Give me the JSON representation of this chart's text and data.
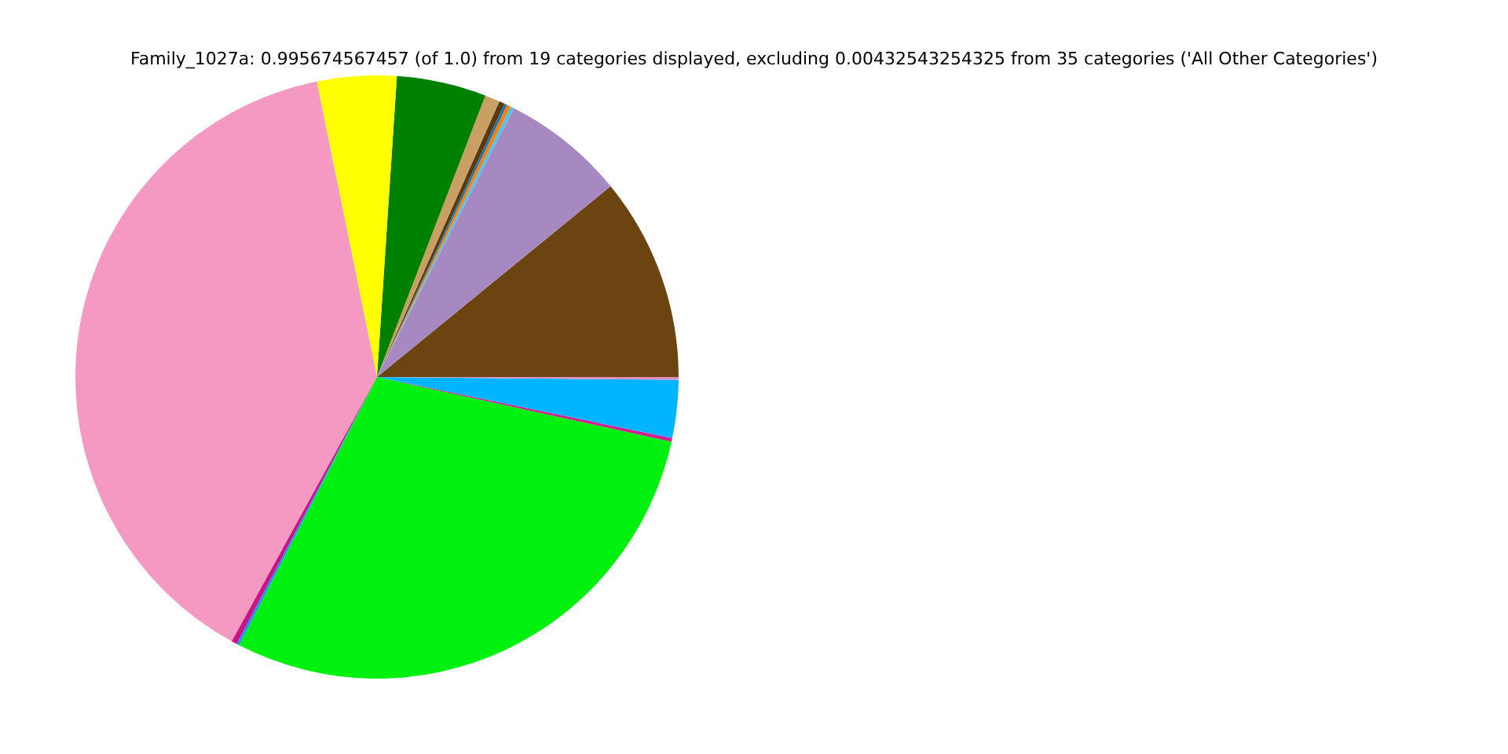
{
  "chart_data": {
    "type": "pie",
    "title": "Family_1027a: 0.995674567457 (of 1.0) from 19 categories displayed, excluding 0.00432543254325 from 35 categories ('All Other Categories')",
    "categories": [
      null,
      null,
      null,
      null,
      null,
      null,
      null,
      null,
      null,
      null,
      null,
      null,
      null,
      null,
      null,
      null
    ],
    "values": [
      10.9,
      6.6,
      0.2,
      0.2,
      0.15,
      0.3,
      0.8,
      4.8,
      4.25,
      38.8,
      0.3,
      0.15,
      29.1,
      0.2,
      3.1,
      0.15
    ],
    "colors": [
      "#6b4410",
      "#a589c0",
      "#56c1e8",
      "#ff8000",
      "#1f77b4",
      "#5a3a0a",
      "#c8a064",
      "#008000",
      "#ffff00",
      "#f49ac2",
      "#c71585",
      "#1e90ff",
      "#00f00f",
      "#d02090",
      "#00b4ff",
      "#e08fc0"
    ],
    "legend": false
  }
}
